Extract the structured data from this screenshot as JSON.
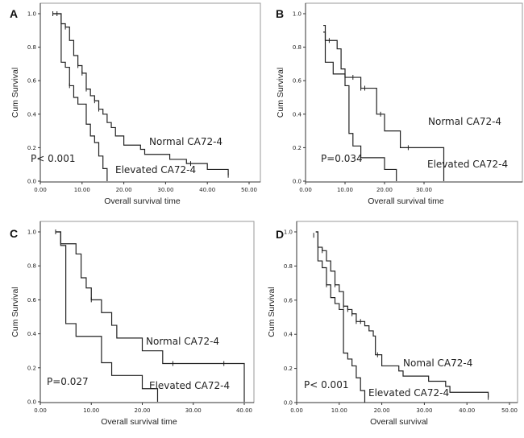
{
  "chart_data": [
    {
      "type": "line",
      "panel_label": "A",
      "xlabel": "Overall survival time",
      "ylabel": "Cum Survival",
      "xlim": [
        0,
        50
      ],
      "ylim": [
        0,
        1
      ],
      "xticks": [
        "0.00",
        "10.00",
        "20.00",
        "30.00",
        "40.00",
        "50.00"
      ],
      "yticks": [
        "0.0",
        "0.2",
        "0.4",
        "0.6",
        "0.8",
        "1.0"
      ],
      "p_value": "P< 0.001",
      "series": [
        {
          "name": "Normal CA72-4",
          "start": [
            3,
            1.0
          ],
          "steps": [
            [
              5,
              0.94
            ],
            [
              6,
              0.92
            ],
            [
              7,
              0.84
            ],
            [
              8,
              0.75
            ],
            [
              9,
              0.69
            ],
            [
              10,
              0.645
            ],
            [
              11,
              0.55
            ],
            [
              12,
              0.51
            ],
            [
              13,
              0.48
            ],
            [
              14,
              0.43
            ],
            [
              15,
              0.4
            ],
            [
              16,
              0.35
            ],
            [
              17,
              0.32
            ],
            [
              18,
              0.27
            ],
            [
              20,
              0.215
            ],
            [
              24,
              0.19
            ],
            [
              25,
              0.16
            ],
            [
              31,
              0.13
            ],
            [
              35,
              0.105
            ],
            [
              40,
              0.07
            ],
            [
              45,
              0.035
            ]
          ],
          "censored": [
            [
              3,
              1.0
            ],
            [
              4,
              1.0
            ],
            [
              6,
              0.92
            ],
            [
              9,
              0.69
            ],
            [
              10,
              0.645
            ],
            [
              11,
              0.55
            ],
            [
              13,
              0.48
            ],
            [
              14,
              0.43
            ],
            [
              36,
              0.105
            ],
            [
              45,
              0.035
            ]
          ]
        },
        {
          "name": "Elevated CA72-4",
          "start": [
            3,
            1.0
          ],
          "steps": [
            [
              5,
              0.71
            ],
            [
              6,
              0.68
            ],
            [
              7,
              0.57
            ],
            [
              8,
              0.5
            ],
            [
              9,
              0.46
            ],
            [
              11,
              0.34
            ],
            [
              12,
              0.27
            ],
            [
              13,
              0.23
            ],
            [
              14,
              0.15
            ],
            [
              15,
              0.075
            ],
            [
              16,
              0
            ]
          ],
          "censored": [
            [
              7,
              0.57
            ]
          ]
        }
      ]
    },
    {
      "type": "line",
      "panel_label": "B",
      "xlabel": "Overall survival time",
      "ylabel": "Cum Survival",
      "xlim": [
        0,
        37
      ],
      "ylim": [
        0,
        1
      ],
      "xticks": [
        "0.00",
        "10.00",
        "20.00",
        "30.00"
      ],
      "yticks": [
        "0.0",
        "0.2",
        "0.4",
        "0.6",
        "0.8",
        "1.0"
      ],
      "p_value": "P=0.034",
      "series": [
        {
          "name": "Normal CA72-4",
          "start": [
            4.5,
            0.93
          ],
          "steps": [
            [
              5,
              0.84
            ],
            [
              8,
              0.79
            ],
            [
              9,
              0.67
            ],
            [
              10,
              0.62
            ],
            [
              14,
              0.555
            ],
            [
              18,
              0.4
            ],
            [
              20,
              0.3
            ],
            [
              24,
              0.2
            ],
            [
              35,
              0
            ]
          ],
          "censored": [
            [
              6,
              0.84
            ],
            [
              12,
              0.62
            ],
            [
              14,
              0.555
            ],
            [
              15,
              0.555
            ],
            [
              19,
              0.4
            ],
            [
              26,
              0.2
            ]
          ]
        },
        {
          "name": "Elevated CA72-4",
          "start": [
            4.5,
            0.89
          ],
          "steps": [
            [
              5,
              0.71
            ],
            [
              7,
              0.64
            ],
            [
              10,
              0.57
            ],
            [
              11,
              0.285
            ],
            [
              12,
              0.21
            ],
            [
              14,
              0.14
            ],
            [
              20,
              0.07
            ],
            [
              23,
              0
            ]
          ],
          "censored": []
        }
      ]
    },
    {
      "type": "line",
      "panel_label": "C",
      "xlabel": "Overall survival time",
      "ylabel": "Cum Survival",
      "xlim": [
        0,
        42
      ],
      "ylim": [
        0,
        1
      ],
      "xticks": [
        "0.00",
        "10.00",
        "20.00",
        "30.00",
        "40.00"
      ],
      "yticks": [
        "0.0",
        "0.2",
        "0.4",
        "0.6",
        "0.8",
        "1.0"
      ],
      "p_value": "P=0.027",
      "series": [
        {
          "name": "Normal CA72-4",
          "start": [
            3,
            1.0
          ],
          "steps": [
            [
              4,
              0.93
            ],
            [
              7,
              0.87
            ],
            [
              8,
              0.73
            ],
            [
              9,
              0.67
            ],
            [
              10,
              0.6
            ],
            [
              12,
              0.525
            ],
            [
              14,
              0.45
            ],
            [
              15,
              0.375
            ],
            [
              20,
              0.3
            ],
            [
              24,
              0.225
            ],
            [
              40,
              0
            ]
          ],
          "censored": [
            [
              3,
              1.0
            ],
            [
              10,
              0.6
            ],
            [
              26,
              0.225
            ],
            [
              36,
              0.225
            ]
          ]
        },
        {
          "name": "Elevated CA72-4",
          "start": [
            3,
            1.0
          ],
          "steps": [
            [
              4,
              0.92
            ],
            [
              5,
              0.46
            ],
            [
              7,
              0.385
            ],
            [
              12,
              0.23
            ],
            [
              14,
              0.155
            ],
            [
              20,
              0.077
            ],
            [
              23,
              0
            ]
          ],
          "censored": []
        }
      ]
    },
    {
      "type": "line",
      "panel_label": "D",
      "xlabel": "Overall survival",
      "ylabel": "Cum Survival",
      "xlim": [
        0,
        51.5
      ],
      "ylim": [
        0,
        1
      ],
      "xticks": [
        "0.00",
        "10.00",
        "20.00",
        "30.00",
        "40.00",
        "50.00"
      ],
      "yticks": [
        "0.0",
        "0.2",
        "0.4",
        "0.6",
        "0.8",
        "1.0"
      ],
      "p_value": "P< 0.001",
      "series": [
        {
          "name": "Nomal CA72-4",
          "start": [
            4.5,
            1.0
          ],
          "steps": [
            [
              5,
              0.91
            ],
            [
              6,
              0.89
            ],
            [
              7,
              0.83
            ],
            [
              8,
              0.77
            ],
            [
              9,
              0.69
            ],
            [
              10,
              0.65
            ],
            [
              11,
              0.565
            ],
            [
              12,
              0.545
            ],
            [
              13,
              0.52
            ],
            [
              14,
              0.475
            ],
            [
              16,
              0.45
            ],
            [
              17,
              0.42
            ],
            [
              18,
              0.39
            ],
            [
              18.5,
              0.28
            ],
            [
              20,
              0.215
            ],
            [
              24,
              0.185
            ],
            [
              25,
              0.155
            ],
            [
              31,
              0.125
            ],
            [
              35,
              0.095
            ],
            [
              36,
              0.06
            ],
            [
              45,
              0.03
            ]
          ],
          "censored": [
            [
              4,
              0.98
            ],
            [
              6,
              0.89
            ],
            [
              9,
              0.69
            ],
            [
              11,
              0.565
            ],
            [
              12,
              0.545
            ],
            [
              13,
              0.52
            ],
            [
              14,
              0.475
            ],
            [
              15,
              0.475
            ],
            [
              19,
              0.28
            ],
            [
              45,
              0.03
            ]
          ]
        },
        {
          "name": "Elevated CA72-4",
          "start": [
            4.5,
            1.0
          ],
          "steps": [
            [
              5,
              0.83
            ],
            [
              6,
              0.79
            ],
            [
              7,
              0.69
            ],
            [
              8,
              0.615
            ],
            [
              9,
              0.58
            ],
            [
              10,
              0.545
            ],
            [
              11,
              0.29
            ],
            [
              12,
              0.255
            ],
            [
              13,
              0.215
            ],
            [
              14,
              0.145
            ],
            [
              15,
              0.07
            ],
            [
              16,
              0
            ]
          ],
          "censored": [
            [
              7,
              0.69
            ]
          ]
        }
      ]
    }
  ]
}
